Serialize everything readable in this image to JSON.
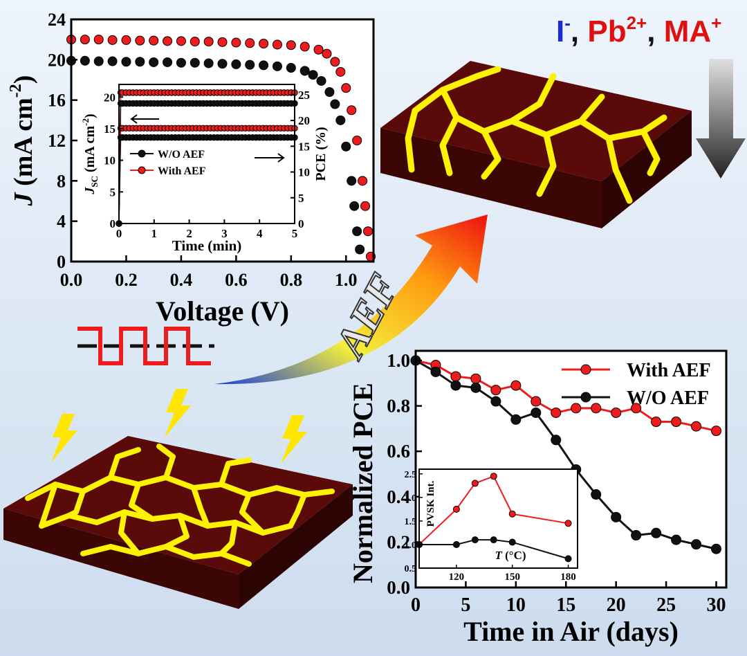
{
  "ions": {
    "iodide": "I",
    "iodide_charge": "-",
    "sep1": ", ",
    "lead": "Pb",
    "lead_charge": "2+",
    "sep2": ", ",
    "ma": "MA",
    "ma_charge": "+",
    "colors": {
      "iodide": "#1a2bd6",
      "cations": "#e01010",
      "separator": "#111111"
    }
  },
  "arrow_label": "AEF",
  "colors": {
    "with_aef": "#ee1c1c",
    "wo_aef": "#111111",
    "film_top": "#5a0a08",
    "film_side": "#3c0604",
    "grain_boundary": "#fff200",
    "lightning": "#ffe600"
  },
  "chart_data": [
    {
      "id": "jv",
      "type": "scatter",
      "ylabel_main": "J",
      "ylabel_rest": " (mA cm",
      "ylabel_exp": "-2",
      "ylabel_close": ")",
      "xlabel": "Voltage (V)",
      "xlim": [
        0.0,
        1.1
      ],
      "ylim": [
        0,
        24
      ],
      "xticks": [
        "0.0",
        "0.2",
        "0.4",
        "0.6",
        "0.8",
        "1.0"
      ],
      "yticks": [
        "0",
        "4",
        "8",
        "12",
        "16",
        "20",
        "24"
      ],
      "series": [
        {
          "key": "with",
          "x": [
            0.0,
            0.05,
            0.1,
            0.15,
            0.2,
            0.25,
            0.3,
            0.35,
            0.4,
            0.45,
            0.5,
            0.55,
            0.6,
            0.65,
            0.7,
            0.75,
            0.8,
            0.85,
            0.9,
            0.93,
            0.96,
            0.98,
            1.0,
            1.02,
            1.04,
            1.06,
            1.07,
            1.08,
            1.09
          ],
          "y": [
            22.0,
            22.0,
            22.0,
            21.95,
            21.95,
            21.9,
            21.9,
            21.85,
            21.85,
            21.8,
            21.8,
            21.75,
            21.7,
            21.65,
            21.6,
            21.5,
            21.45,
            21.3,
            21.0,
            20.6,
            19.8,
            18.8,
            17.2,
            15.0,
            12.0,
            8.0,
            5.5,
            3.0,
            0.5
          ]
        },
        {
          "key": "wo",
          "x": [
            0.0,
            0.05,
            0.1,
            0.15,
            0.2,
            0.25,
            0.3,
            0.35,
            0.4,
            0.45,
            0.5,
            0.55,
            0.6,
            0.65,
            0.7,
            0.75,
            0.8,
            0.85,
            0.88,
            0.91,
            0.94,
            0.96,
            0.98,
            1.0,
            1.02,
            1.03,
            1.04,
            1.05
          ],
          "y": [
            19.9,
            19.9,
            19.85,
            19.85,
            19.8,
            19.8,
            19.75,
            19.75,
            19.7,
            19.7,
            19.65,
            19.6,
            19.55,
            19.5,
            19.45,
            19.35,
            19.2,
            18.9,
            18.5,
            17.9,
            16.8,
            15.6,
            14.0,
            11.4,
            8.0,
            5.5,
            3.0,
            1.2
          ]
        }
      ]
    },
    {
      "id": "jsc_inset",
      "type": "scatter",
      "ylabel_main": "J",
      "ylabel_sub": "SC",
      "ylabel_rest": " (mA cm",
      "ylabel_exp": "-2",
      "ylabel_close": ")",
      "y2label": "PCE (%)",
      "xlabel": "Time (min)",
      "xlim": [
        0,
        5
      ],
      "ylim": [
        0,
        22
      ],
      "y2lim": [
        0,
        27
      ],
      "xticks": [
        "0",
        "1",
        "2",
        "3",
        "4",
        "5"
      ],
      "yticks": [
        "0",
        "5",
        "10",
        "15",
        "20"
      ],
      "y2ticks": [
        "0",
        "5",
        "10",
        "15",
        "20",
        "25"
      ],
      "legend": [
        "W/O AEF",
        "With AEF"
      ],
      "series": [
        {
          "key": "with",
          "axis": "left",
          "y_start": 0.0,
          "y_plateau": 20.7
        },
        {
          "key": "wo",
          "axis": "left",
          "y_start": 0.0,
          "y_plateau": 19.0
        },
        {
          "key": "with",
          "axis": "right",
          "y_start": 0.0,
          "y_plateau": 18.5
        },
        {
          "key": "wo",
          "axis": "right",
          "y_start": 0.0,
          "y_plateau": 16.7
        }
      ]
    },
    {
      "id": "stability",
      "type": "line",
      "ylabel": "Normalized PCE",
      "xlabel": "Time in Air (days)",
      "xlim": [
        0,
        31
      ],
      "ylim": [
        0,
        1.05
      ],
      "xticks": [
        "0",
        "5",
        "10",
        "15",
        "20",
        "25",
        "30"
      ],
      "yticks": [
        "0.0",
        "0.2",
        "0.4",
        "0.6",
        "0.8",
        "1.0"
      ],
      "legend": [
        "With AEF",
        "W/O AEF"
      ],
      "legend_position": "top-right",
      "series": [
        {
          "key": "with",
          "x": [
            0,
            2,
            4,
            6,
            8,
            10,
            12,
            14,
            16,
            18,
            20,
            22,
            24,
            26,
            28,
            30
          ],
          "y": [
            1.0,
            0.98,
            0.93,
            0.92,
            0.87,
            0.89,
            0.82,
            0.77,
            0.79,
            0.79,
            0.77,
            0.79,
            0.73,
            0.73,
            0.71,
            0.69
          ]
        },
        {
          "key": "wo",
          "x": [
            0,
            2,
            4,
            6,
            8,
            10,
            12,
            14,
            16,
            18,
            20,
            22,
            24,
            26,
            28,
            30
          ],
          "y": [
            1.0,
            0.95,
            0.89,
            0.88,
            0.82,
            0.74,
            0.77,
            0.65,
            0.52,
            0.41,
            0.31,
            0.23,
            0.24,
            0.21,
            0.19,
            0.17
          ]
        }
      ]
    },
    {
      "id": "pvsk_inset",
      "type": "line",
      "ylabel": "PVSK Int.",
      "xlabel_main": "T",
      "xlabel_rest": " (°C)",
      "xlim": [
        100,
        185
      ],
      "ylim": [
        0.5,
        2.6
      ],
      "xticks": [
        "120",
        "150",
        "180"
      ],
      "yticks": [
        "0.5",
        "1.0",
        "1.5",
        "2.0",
        "2.5"
      ],
      "series": [
        {
          "key": "with",
          "x": [
            100,
            120,
            130,
            140,
            150,
            180
          ],
          "y": [
            1.0,
            1.75,
            2.3,
            2.45,
            1.65,
            1.45
          ]
        },
        {
          "key": "wo",
          "x": [
            100,
            120,
            130,
            140,
            150,
            180
          ],
          "y": [
            1.0,
            1.0,
            1.1,
            1.1,
            1.05,
            0.7
          ]
        }
      ]
    }
  ]
}
